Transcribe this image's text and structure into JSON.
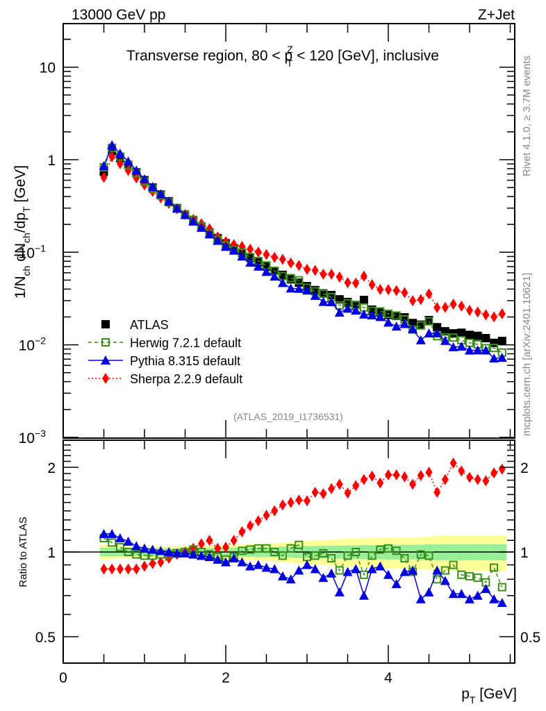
{
  "header": {
    "left": "13000 GeV pp",
    "right": "Z+Jet"
  },
  "side_text": {
    "rivet": "Rivet 4.1.0, ≥ 3.7M events",
    "mcplots": "mcplots.cern.ch [arXiv:2401.10621]"
  },
  "chart_data": [
    {
      "type": "scatter",
      "panel": "main",
      "title": "Transverse region, 80 < p_T^Z < 120 [GeV], inclusive",
      "title_parts": {
        "pre": "Transverse region, 80 < p",
        "sup": "Z",
        "sub": "T",
        "post": " < 120 [GeV], inclusive"
      },
      "ylabel": "1/N_ch dN_ch/dp_T [GeV]",
      "ylabel_parts": [
        "1/N",
        "ch",
        " dN",
        "ch",
        "/dp",
        "T",
        " [GeV]"
      ],
      "yscale": "log",
      "ylim": [
        0.001,
        30
      ],
      "xlim": [
        0,
        5.56
      ],
      "yticks": [
        {
          "v": 10,
          "base": "10",
          "exp": ""
        },
        {
          "v": 1,
          "base": "1",
          "exp": ""
        },
        {
          "v": 0.1,
          "base": "10",
          "exp": "−1"
        },
        {
          "v": 0.01,
          "base": "10",
          "exp": "−2"
        },
        {
          "v": 0.001,
          "base": "10",
          "exp": "−3"
        }
      ],
      "watermark": "(ATLAS_2019_I1736531)",
      "legend": {
        "placement": "lower-left",
        "entries": [
          {
            "name": "ATLAS",
            "color": "#000000",
            "marker": "square-filled",
            "line": "none"
          },
          {
            "name": "Herwig 7.2.1 default",
            "color": "#3a8f1a",
            "marker": "square-open",
            "line": "dashed"
          },
          {
            "name": "Pythia 8.315 default",
            "color": "#0000e0",
            "marker": "triangle",
            "line": "solid"
          },
          {
            "name": "Sherpa 2.2.9 default",
            "color": "#ff0000",
            "marker": "diamond",
            "line": "dotted"
          }
        ]
      },
      "x": [
        0.5,
        0.6,
        0.7,
        0.8,
        0.9,
        1.0,
        1.1,
        1.2,
        1.3,
        1.4,
        1.5,
        1.6,
        1.7,
        1.8,
        1.9,
        2.0,
        2.1,
        2.2,
        2.3,
        2.4,
        2.5,
        2.6,
        2.7,
        2.8,
        2.9,
        3.0,
        3.1,
        3.2,
        3.3,
        3.4,
        3.5,
        3.6,
        3.7,
        3.8,
        3.9,
        4.0,
        4.1,
        4.2,
        4.3,
        4.4,
        4.5,
        4.6,
        4.7,
        4.8,
        4.9,
        5.0,
        5.1,
        5.2,
        5.3,
        5.4
      ],
      "series": [
        {
          "name": "ATLAS",
          "values": [
            0.74,
            1.24,
            1.04,
            0.88,
            0.73,
            0.6,
            0.5,
            0.42,
            0.355,
            0.3,
            0.256,
            0.22,
            0.19,
            0.163,
            0.142,
            0.125,
            0.11,
            0.098,
            0.087,
            0.078,
            0.07,
            0.063,
            0.057,
            0.051,
            0.047,
            0.043,
            0.039,
            0.036,
            0.0345,
            0.031,
            0.029,
            0.027,
            0.0305,
            0.024,
            0.0225,
            0.021,
            0.0205,
            0.0198,
            0.0172,
            0.0165,
            0.0185,
            0.0155,
            0.014,
            0.0133,
            0.0135,
            0.0128,
            0.0125,
            0.0118,
            0.0105,
            0.011
          ]
        }
      ]
    },
    {
      "type": "scatter",
      "panel": "ratio",
      "ylabel": "Ratio to ATLAS",
      "xlabel": "p_T [GeV]",
      "xlabel_parts": {
        "main": "p",
        "sub": "T",
        "post": " [GeV]"
      },
      "yscale": "log",
      "ylim": [
        0.4,
        2.49
      ],
      "xlim": [
        0,
        5.56
      ],
      "yticks": [
        {
          "v": 2,
          "label": "2"
        },
        {
          "v": 1,
          "label": "1"
        },
        {
          "v": 0.5,
          "label": "0.5"
        }
      ],
      "xticks": [
        {
          "v": 0,
          "label": "0"
        },
        {
          "v": 2,
          "label": "2"
        },
        {
          "v": 4,
          "label": "4"
        }
      ],
      "reference_line": 1,
      "bands": {
        "inner_color": "#99ee99",
        "outer_color": "#ffff99",
        "inner_halfwidth": [
          0.035,
          0.035,
          0.033,
          0.032,
          0.031,
          0.03,
          0.03,
          0.03,
          0.03,
          0.03,
          0.03,
          0.031,
          0.031,
          0.032,
          0.033,
          0.034,
          0.035,
          0.036,
          0.038,
          0.04,
          0.04,
          0.041,
          0.045,
          0.045,
          0.048,
          0.05,
          0.05,
          0.052,
          0.052,
          0.053,
          0.055,
          0.055,
          0.058,
          0.058,
          0.058,
          0.06,
          0.06,
          0.06,
          0.06,
          0.062,
          0.065,
          0.065,
          0.065,
          0.065,
          0.065,
          0.065,
          0.065,
          0.065,
          0.065,
          0.065
        ],
        "outer_halfwidth": [
          0.06,
          0.055,
          0.05,
          0.05,
          0.048,
          0.047,
          0.047,
          0.047,
          0.047,
          0.048,
          0.049,
          0.05,
          0.05,
          0.052,
          0.055,
          0.057,
          0.06,
          0.062,
          0.065,
          0.068,
          0.07,
          0.075,
          0.08,
          0.085,
          0.09,
          0.095,
          0.1,
          0.1,
          0.105,
          0.11,
          0.115,
          0.115,
          0.12,
          0.12,
          0.125,
          0.125,
          0.125,
          0.125,
          0.125,
          0.13,
          0.135,
          0.14,
          0.145,
          0.145,
          0.145,
          0.145,
          0.145,
          0.145,
          0.145,
          0.145
        ]
      },
      "x": [
        0.5,
        0.6,
        0.7,
        0.8,
        0.9,
        1.0,
        1.1,
        1.2,
        1.3,
        1.4,
        1.5,
        1.6,
        1.7,
        1.8,
        1.9,
        2.0,
        2.1,
        2.2,
        2.3,
        2.4,
        2.5,
        2.6,
        2.7,
        2.8,
        2.9,
        3.0,
        3.1,
        3.2,
        3.3,
        3.4,
        3.5,
        3.6,
        3.7,
        3.8,
        3.9,
        4.0,
        4.1,
        4.2,
        4.3,
        4.4,
        4.5,
        4.6,
        4.7,
        4.8,
        4.9,
        5.0,
        5.1,
        5.2,
        5.3,
        5.4
      ],
      "series": [
        {
          "name": "Herwig 7.2.1 default",
          "values": [
            1.12,
            1.08,
            1.04,
            1.0,
            0.98,
            0.97,
            0.97,
            0.98,
            0.98,
            0.99,
            1.0,
            1.02,
            1.0,
            0.98,
            0.96,
            0.94,
            0.96,
            1.01,
            1.02,
            1.03,
            1.03,
            1.0,
            0.97,
            1.03,
            1.06,
            0.96,
            0.97,
            0.99,
            0.95,
            0.86,
            0.97,
            1.0,
            0.83,
            0.97,
            1.02,
            1.03,
            1.01,
            0.95,
            0.85,
            0.98,
            0.97,
            0.8,
            0.86,
            0.9,
            0.83,
            0.82,
            0.81,
            0.78,
            0.88,
            0.75
          ]
        },
        {
          "name": "Pythia 8.315 default",
          "values": [
            1.16,
            1.16,
            1.12,
            1.09,
            1.05,
            1.03,
            1.02,
            1.01,
            1.0,
            0.99,
            0.99,
            0.98,
            0.97,
            0.96,
            0.94,
            0.92,
            0.95,
            0.92,
            0.89,
            0.9,
            0.88,
            0.87,
            0.82,
            0.8,
            0.86,
            0.9,
            0.87,
            0.81,
            0.84,
            0.72,
            0.85,
            0.87,
            0.7,
            0.87,
            0.89,
            0.83,
            0.77,
            0.85,
            0.86,
            0.68,
            0.72,
            0.86,
            0.79,
            0.71,
            0.71,
            0.68,
            0.7,
            0.74,
            0.68,
            0.66
          ]
        },
        {
          "name": "Sherpa 2.2.9 default",
          "values": [
            0.87,
            0.87,
            0.87,
            0.87,
            0.87,
            0.89,
            0.91,
            0.92,
            0.95,
            0.98,
            1.0,
            1.03,
            1.07,
            1.1,
            1.03,
            1.04,
            1.1,
            1.18,
            1.24,
            1.29,
            1.35,
            1.4,
            1.47,
            1.5,
            1.53,
            1.52,
            1.63,
            1.61,
            1.68,
            1.74,
            1.62,
            1.72,
            1.81,
            1.86,
            1.76,
            1.88,
            1.88,
            1.85,
            1.74,
            1.87,
            1.92,
            1.63,
            1.81,
            2.07,
            1.94,
            1.84,
            1.81,
            1.79,
            1.91,
            1.97
          ]
        }
      ]
    }
  ]
}
